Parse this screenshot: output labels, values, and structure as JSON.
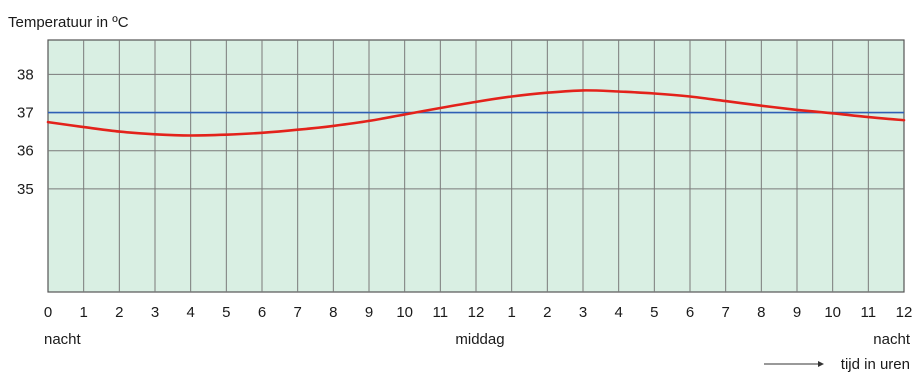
{
  "chart_data": {
    "type": "line",
    "title": "Temperatuur in ºC",
    "x_tick_labels": [
      "0",
      "1",
      "2",
      "3",
      "4",
      "5",
      "6",
      "7",
      "8",
      "9",
      "10",
      "11",
      "12",
      "1",
      "2",
      "3",
      "4",
      "5",
      "6",
      "7",
      "8",
      "9",
      "10",
      "11",
      "12"
    ],
    "x_annotations": [
      {
        "text": "nacht",
        "x": 0
      },
      {
        "text": "middag",
        "x": 12
      },
      {
        "text": "nacht",
        "x": 24
      }
    ],
    "xlabel": "tijd in uren",
    "y_ticks": [
      35,
      36,
      37,
      38
    ],
    "xlim": [
      0,
      24
    ],
    "ylim": [
      32.3,
      38.9
    ],
    "reference_line": {
      "value": 37,
      "color": "#2f5fb5"
    },
    "grid": true,
    "series": [
      {
        "color": "#e3221b",
        "x": [
          0,
          1,
          2,
          3,
          4,
          5,
          6,
          7,
          8,
          9,
          10,
          11,
          12,
          13,
          14,
          15,
          16,
          17,
          18,
          19,
          20,
          21,
          22,
          23,
          24
        ],
        "y": [
          36.75,
          36.62,
          36.5,
          36.43,
          36.4,
          36.42,
          36.47,
          36.55,
          36.65,
          36.78,
          36.95,
          37.12,
          37.28,
          37.42,
          37.52,
          37.58,
          37.55,
          37.5,
          37.42,
          37.3,
          37.18,
          37.07,
          36.98,
          36.88,
          36.8
        ]
      }
    ]
  },
  "colors": {
    "plot_background": "#d9efe3",
    "grid": "#7a7a7a",
    "axis_label_accent": "#2f5fb5"
  }
}
